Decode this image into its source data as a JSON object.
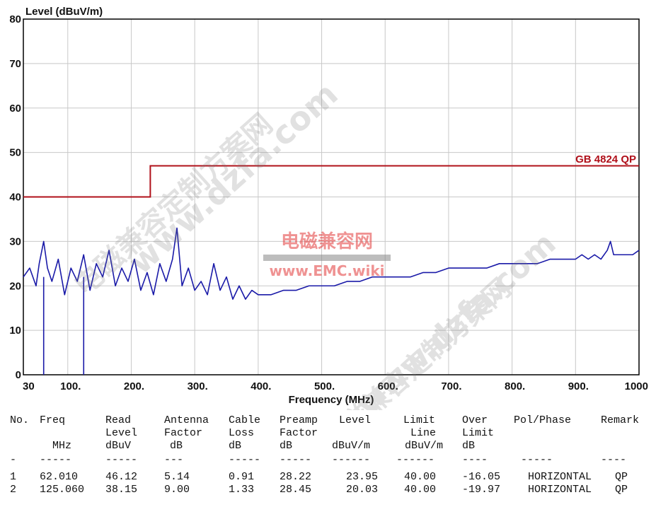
{
  "chart_data": {
    "type": "line",
    "title": "Level (dBuV/m)",
    "xlabel": "Frequency (MHz)",
    "ylabel": "Level (dBuV/m)",
    "xlim": [
      30,
      1000
    ],
    "ylim": [
      0,
      80
    ],
    "x_ticks": [
      "30",
      "100.",
      "200.",
      "300.",
      "400.",
      "500.",
      "600.",
      "700.",
      "800.",
      "900.",
      "1000"
    ],
    "x_tick_values": [
      30,
      100,
      200,
      300,
      400,
      500,
      600,
      700,
      800,
      900,
      1000
    ],
    "y_ticks": [
      0,
      10,
      20,
      30,
      40,
      50,
      60,
      70,
      80
    ],
    "grid": true,
    "colors": {
      "trace": "#1a1aa8",
      "limit": "#b0101a",
      "grid": "#c8c8c8",
      "frame": "#000000"
    },
    "limit_line": {
      "name": "GB 4824 QP",
      "segments": [
        {
          "x": [
            30,
            230
          ],
          "y": 40
        },
        {
          "x": [
            230,
            1000
          ],
          "y": 47
        }
      ]
    },
    "series": [
      {
        "type": "line",
        "x": [
          30,
          40,
          50,
          55,
          62,
          68,
          75,
          85,
          95,
          105,
          115,
          125,
          135,
          145,
          155,
          165,
          175,
          185,
          195,
          205,
          215,
          225,
          235,
          245,
          255,
          265,
          272,
          280,
          290,
          300,
          310,
          320,
          330,
          340,
          350,
          360,
          370,
          380,
          390,
          400,
          420,
          440,
          460,
          480,
          500,
          520,
          540,
          560,
          580,
          600,
          620,
          640,
          660,
          680,
          700,
          720,
          740,
          760,
          780,
          800,
          820,
          840,
          860,
          880,
          900,
          910,
          920,
          930,
          940,
          950,
          955,
          960,
          970,
          980,
          990,
          1000
        ],
        "y": [
          22,
          24,
          20,
          25,
          30,
          24,
          21,
          26,
          18,
          24,
          21,
          27,
          19,
          25,
          22,
          28,
          20,
          24,
          21,
          26,
          19,
          23,
          18,
          25,
          21,
          26,
          33,
          20,
          24,
          19,
          21,
          18,
          25,
          19,
          22,
          17,
          20,
          17,
          19,
          18,
          18,
          19,
          19,
          20,
          20,
          20,
          21,
          21,
          22,
          22,
          22,
          22,
          23,
          23,
          24,
          24,
          24,
          24,
          25,
          25,
          25,
          25,
          26,
          26,
          26,
          27,
          26,
          27,
          26,
          28,
          30,
          27,
          27,
          27,
          27,
          28
        ]
      }
    ],
    "spikes": [
      {
        "x": 62.01,
        "y": 0
      },
      {
        "x": 125.06,
        "y": 0
      }
    ]
  },
  "table": {
    "headers": [
      [
        "No.",
        "Freq",
        "Read",
        "Antenna",
        "Cable",
        "Preamp",
        "Level",
        "Limit",
        "Over",
        "Pol/Phase",
        "Remark"
      ],
      [
        "",
        "",
        "Level",
        "Factor",
        "Loss",
        "Factor",
        "",
        "Line",
        "Limit",
        "",
        ""
      ],
      [
        "",
        "MHz",
        "dBuV",
        "dB",
        "dB",
        "dB",
        "dBuV/m",
        "dBuV/m",
        "dB",
        "",
        ""
      ]
    ],
    "dashes": [
      "-",
      "-----",
      "-----",
      "---",
      "-----",
      "-----",
      "------",
      "------",
      "----",
      "-----",
      "----"
    ],
    "rows": [
      [
        "1",
        "62.010",
        "46.12",
        "5.14",
        "0.91",
        "28.22",
        "23.95",
        "40.00",
        "-16.05",
        "HORIZONTAL",
        "QP"
      ],
      [
        "2",
        "125.060",
        "38.15",
        "9.00",
        "1.33",
        "28.45",
        "20.03",
        "40.00",
        "-19.97",
        "HORIZONTAL",
        "QP"
      ]
    ]
  },
  "watermarks": {
    "site_cn": "电磁兼容网",
    "site_en": "www.EMC.wiki",
    "diag_1": "www.dzfa.com",
    "diag_2": "电磁兼容定制方案网"
  }
}
